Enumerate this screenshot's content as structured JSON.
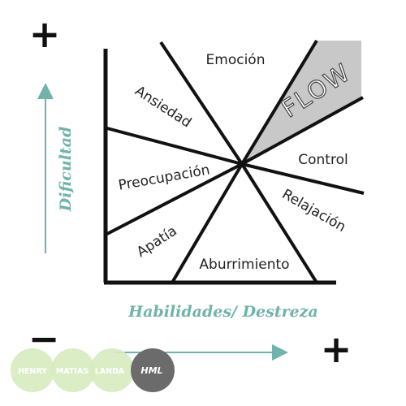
{
  "diagram": {
    "zones": {
      "emocion": "Emoción",
      "ansiedad": "Ansiedad",
      "flow": "FLOW",
      "control": "Control",
      "preocupacion": "Preocupación",
      "relajacion": "Relajación",
      "apatia": "Apatía",
      "aburrimiento": "Aburrimiento"
    },
    "axes": {
      "y_label": "Dificultad",
      "x_label": "Habilidades/ Destreza",
      "y_plus": "+",
      "x_minus": "−",
      "x_plus": "+"
    },
    "colors": {
      "line": "#111111",
      "flow_fill": "#c8c8c8",
      "axis_accent": "#6fb3aa",
      "credit_circle": "#d6ebbf",
      "credit_dark": "#6b6b6b"
    }
  },
  "credits": {
    "circle1": "HENRY",
    "circle2": "MATIAS",
    "circle3": "LANDA",
    "circle4": "HML"
  }
}
